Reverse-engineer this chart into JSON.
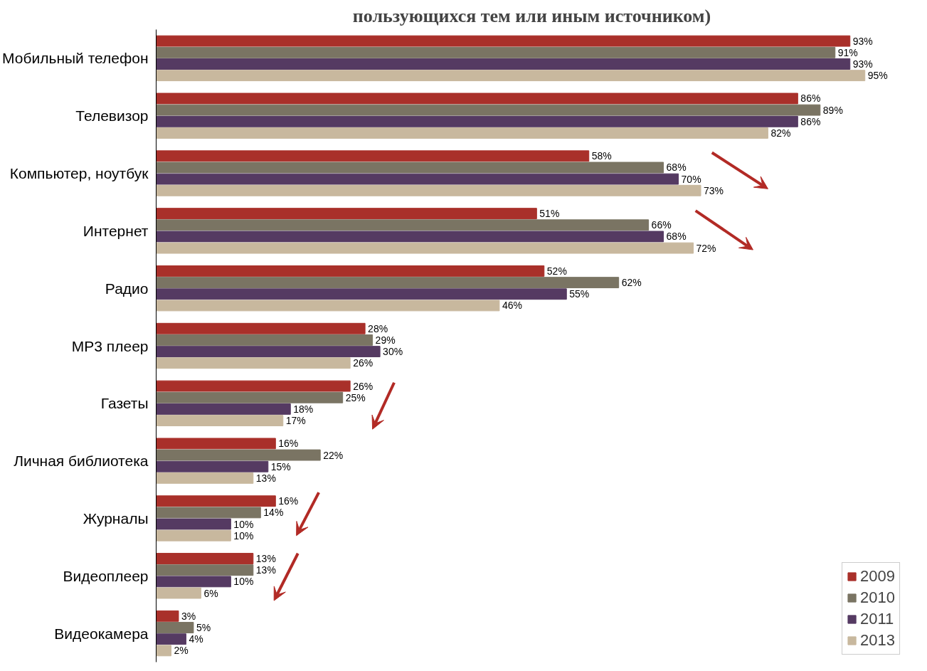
{
  "chart_data": {
    "type": "bar",
    "orientation": "horizontal",
    "title": "пользующихся тем или иным источником)",
    "categories": [
      "Мобильный телефон",
      "Телевизор",
      "Компьютер, ноутбук",
      "Интернет",
      "Радио",
      "MP3 плеер",
      "Газеты",
      "Личная библиотека",
      "Журналы",
      "Видеоплеер",
      "Видеокамера"
    ],
    "series": [
      {
        "name": "2009",
        "color": "#a9302a",
        "values": [
          93,
          86,
          58,
          51,
          52,
          28,
          26,
          16,
          16,
          13,
          3
        ],
        "value_labels": [
          "93%",
          "86%",
          "58%",
          "51%",
          "52%",
          "28%",
          "26%",
          "16%",
          "16%",
          "13%",
          "3%"
        ]
      },
      {
        "name": "2010",
        "color": "#7a7463",
        "values": [
          91,
          89,
          68,
          66,
          62,
          29,
          25,
          22,
          14,
          13,
          5
        ],
        "value_labels": [
          "91%",
          "89%",
          "68%",
          "66%",
          "62%",
          "29%",
          "25%",
          "22%",
          "14%",
          "13%",
          "5%"
        ]
      },
      {
        "name": "2011",
        "color": "#553a62",
        "values": [
          93,
          86,
          70,
          68,
          55,
          30,
          18,
          15,
          10,
          10,
          4
        ],
        "value_labels": [
          "93%",
          "86%",
          "70%",
          "68%",
          "55%",
          "30%",
          "18%",
          "15%",
          "10%",
          "10%",
          "4%"
        ]
      },
      {
        "name": "2013",
        "color": "#c8b89e",
        "values": [
          95,
          82,
          73,
          72,
          46,
          26,
          17,
          13,
          10,
          6,
          2
        ],
        "value_labels": [
          "95%",
          "82%",
          "73%",
          "72%",
          "46%",
          "26%",
          "17%",
          "13%",
          "10%",
          "6%",
          "2%"
        ]
      }
    ],
    "legend": "bottom right",
    "grid": false
  }
}
